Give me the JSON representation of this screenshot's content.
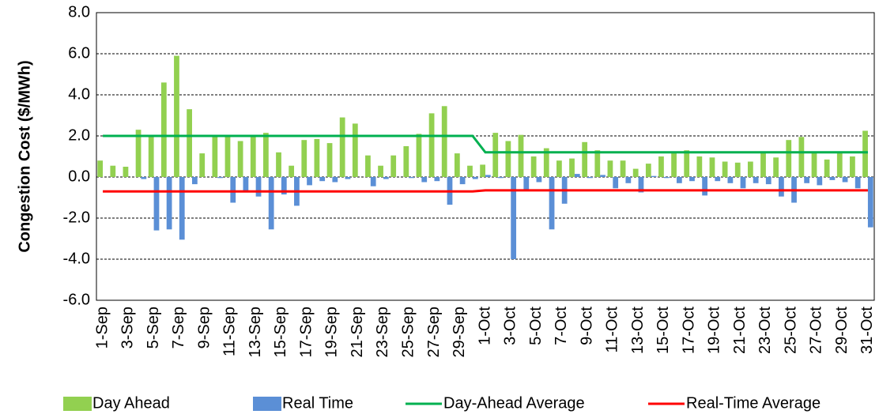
{
  "chart_data": {
    "type": "bar",
    "y_label": "Congestion Cost ($/MWh)",
    "ylim": [
      -6,
      8
    ],
    "yticks": [
      {
        "value": -6,
        "label": "-6.0"
      },
      {
        "value": -4,
        "label": "-4.0"
      },
      {
        "value": -2,
        "label": "-2.0"
      },
      {
        "value": 0,
        "label": "0.0"
      },
      {
        "value": 2,
        "label": "2.0"
      },
      {
        "value": 4,
        "label": "4.0"
      },
      {
        "value": 6,
        "label": "6.0"
      },
      {
        "value": 8,
        "label": "8.0"
      }
    ],
    "grid": true,
    "legend": "bottom",
    "categories": [
      "1-Sep",
      null,
      "3-Sep",
      null,
      "5-Sep",
      null,
      "7-Sep",
      null,
      "9-Sep",
      null,
      "11-Sep",
      null,
      "13-Sep",
      null,
      "15-Sep",
      null,
      "17-Sep",
      null,
      "19-Sep",
      null,
      "21-Sep",
      null,
      "23-Sep",
      null,
      "25-Sep",
      null,
      "27-Sep",
      null,
      "29-Sep",
      null,
      "1-Oct",
      null,
      "3-Oct",
      null,
      "5-Oct",
      null,
      "7-Oct",
      null,
      "9-Oct",
      null,
      "11-Oct",
      null,
      "13-Oct",
      null,
      "15-Oct",
      null,
      "17-Oct",
      null,
      "19-Oct",
      null,
      "21-Oct",
      null,
      "23-Oct",
      null,
      "25-Oct",
      null,
      "27-Oct",
      null,
      "29-Oct",
      null,
      "31-Oct"
    ],
    "series": [
      {
        "name": "Day Ahead",
        "type": "bar",
        "color": "#92d050",
        "values": [
          0.8,
          0.55,
          0.5,
          2.3,
          2.0,
          4.6,
          5.9,
          3.3,
          1.15,
          2.0,
          2.0,
          1.75,
          2.0,
          2.15,
          1.2,
          0.55,
          1.8,
          1.85,
          1.65,
          2.9,
          2.6,
          1.05,
          0.55,
          1.05,
          1.5,
          2.1,
          3.1,
          3.45,
          1.15,
          0.55,
          0.6,
          2.15,
          1.75,
          2.05,
          1.0,
          1.4,
          0.8,
          0.9,
          1.7,
          1.3,
          0.8,
          0.8,
          0.4,
          0.65,
          1.0,
          1.2,
          1.3,
          1.0,
          0.95,
          0.75,
          0.7,
          0.75,
          1.2,
          0.95,
          1.8,
          1.95,
          1.2,
          0.85,
          1.2,
          1.0,
          2.25
        ]
      },
      {
        "name": "Real Time",
        "type": "bar",
        "color": "#5b8fd6",
        "values": [
          0.0,
          0.0,
          0.0,
          -0.1,
          -2.6,
          -2.55,
          -3.05,
          -0.35,
          0.0,
          -0.05,
          -1.25,
          -0.7,
          -0.95,
          -2.55,
          -0.85,
          -1.4,
          -0.4,
          -0.2,
          -0.25,
          -0.1,
          0.0,
          -0.45,
          -0.1,
          0.0,
          -0.05,
          -0.25,
          -0.2,
          -1.35,
          -0.35,
          -0.1,
          0.1,
          -0.05,
          -4.0,
          -0.6,
          -0.25,
          -2.55,
          -1.3,
          0.15,
          -0.05,
          0.1,
          -0.55,
          -0.3,
          -0.75,
          0.05,
          -0.05,
          -0.3,
          -0.2,
          -0.9,
          -0.2,
          -0.3,
          -0.55,
          -0.3,
          -0.35,
          -0.95,
          -1.25,
          -0.3,
          -0.4,
          -0.15,
          -0.25,
          -0.55,
          -2.45
        ]
      },
      {
        "name": "Day-Ahead Average",
        "type": "line",
        "color": "#00b050",
        "values": [
          2.0,
          2.0,
          2.0,
          2.0,
          2.0,
          2.0,
          2.0,
          2.0,
          2.0,
          2.0,
          2.0,
          2.0,
          2.0,
          2.0,
          2.0,
          2.0,
          2.0,
          2.0,
          2.0,
          2.0,
          2.0,
          2.0,
          2.0,
          2.0,
          2.0,
          2.0,
          2.0,
          2.0,
          2.0,
          2.0,
          1.2,
          1.2,
          1.2,
          1.2,
          1.2,
          1.2,
          1.2,
          1.2,
          1.2,
          1.2,
          1.2,
          1.2,
          1.2,
          1.2,
          1.2,
          1.2,
          1.2,
          1.2,
          1.2,
          1.2,
          1.2,
          1.2,
          1.2,
          1.2,
          1.2,
          1.2,
          1.2,
          1.2,
          1.2,
          1.2,
          1.2
        ]
      },
      {
        "name": "Real-Time Average",
        "type": "line",
        "color": "#ff0000",
        "values": [
          -0.7,
          -0.7,
          -0.7,
          -0.7,
          -0.7,
          -0.7,
          -0.7,
          -0.7,
          -0.7,
          -0.7,
          -0.7,
          -0.7,
          -0.7,
          -0.7,
          -0.7,
          -0.7,
          -0.7,
          -0.7,
          -0.7,
          -0.7,
          -0.7,
          -0.7,
          -0.7,
          -0.7,
          -0.7,
          -0.7,
          -0.7,
          -0.7,
          -0.7,
          -0.7,
          -0.65,
          -0.65,
          -0.65,
          -0.65,
          -0.65,
          -0.65,
          -0.65,
          -0.65,
          -0.65,
          -0.65,
          -0.65,
          -0.65,
          -0.65,
          -0.65,
          -0.65,
          -0.65,
          -0.65,
          -0.65,
          -0.65,
          -0.65,
          -0.65,
          -0.65,
          -0.65,
          -0.65,
          -0.65,
          -0.65,
          -0.65,
          -0.65,
          -0.65,
          -0.65,
          -0.65
        ]
      }
    ]
  }
}
